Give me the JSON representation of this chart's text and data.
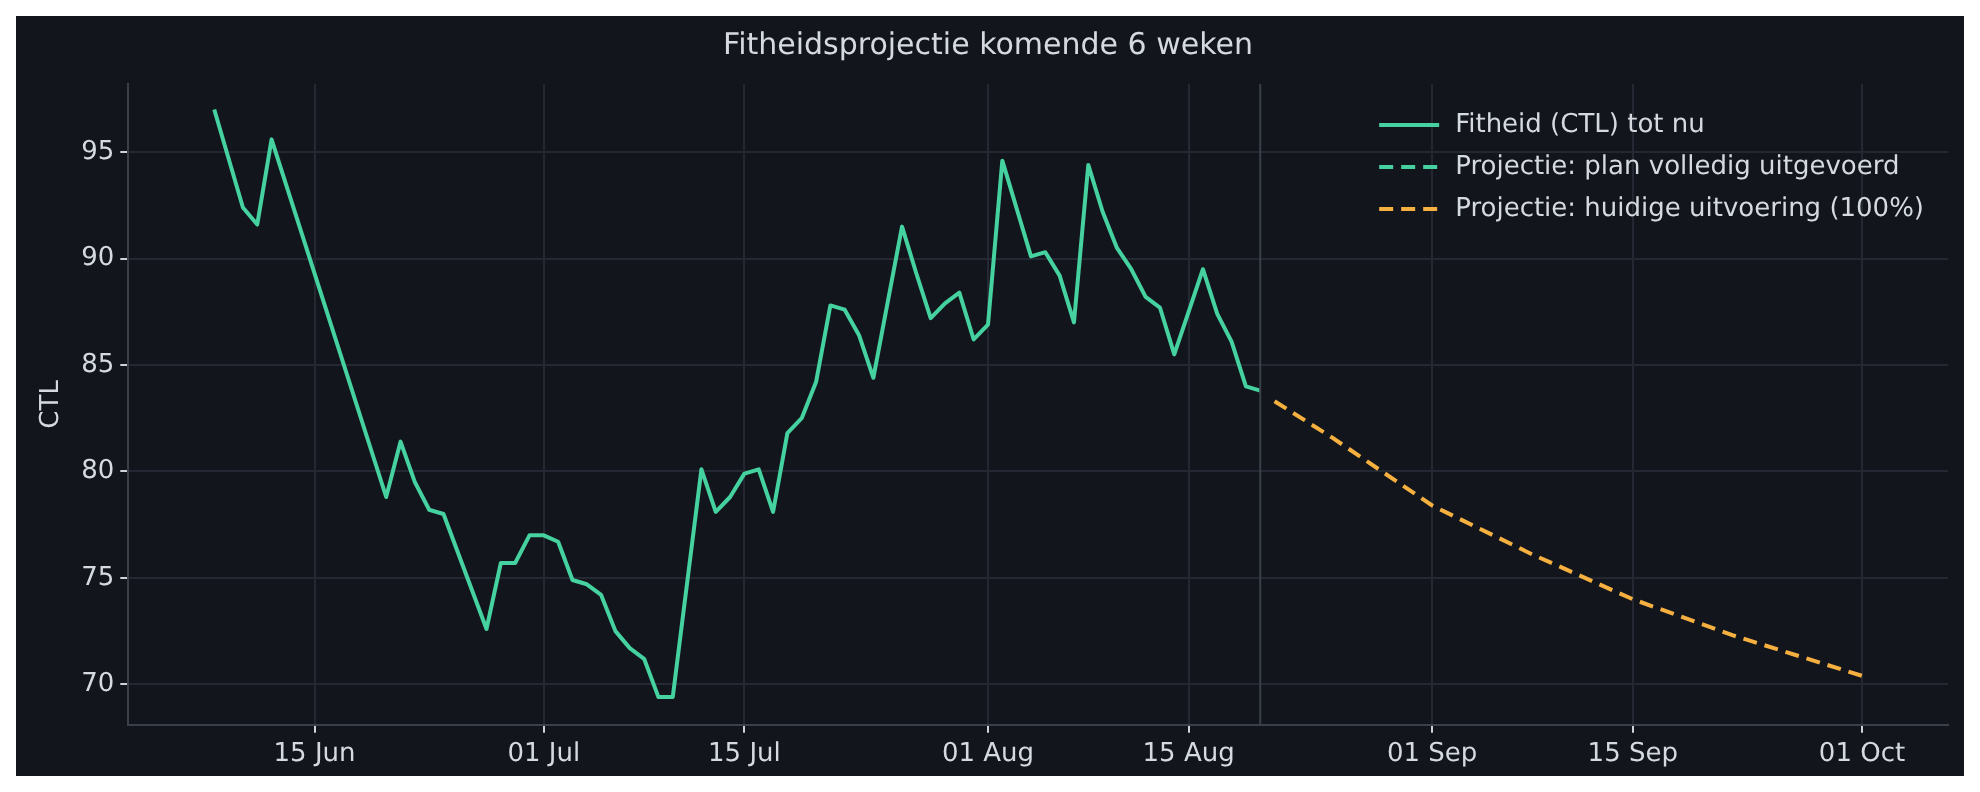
{
  "chart_data": {
    "type": "line",
    "title": "Fitheidsprojectie komende 6 weken",
    "ylabel": "CTL",
    "xlim": [
      "--06-02",
      "--10-07"
    ],
    "ylim": [
      68.1,
      98.2
    ],
    "xticks": [
      {
        "value": "--06-15",
        "label": "15 Jun"
      },
      {
        "value": "--07-01",
        "label": "01 Jul"
      },
      {
        "value": "--07-15",
        "label": "15 Jul"
      },
      {
        "value": "--08-01",
        "label": "01 Aug"
      },
      {
        "value": "--08-15",
        "label": "15 Aug"
      },
      {
        "value": "--09-01",
        "label": "01 Sep"
      },
      {
        "value": "--09-15",
        "label": "15 Sep"
      },
      {
        "value": "--10-01",
        "label": "01 Oct"
      }
    ],
    "yticks": [
      70,
      75,
      80,
      85,
      90,
      95
    ],
    "grid": true,
    "legend": "top right",
    "ref_lines": [
      {
        "axis": "x",
        "value": "--08-20",
        "color": "#3a404a"
      }
    ],
    "series": [
      {
        "name": "Fitheid (CTL) tot nu",
        "color": "#45d1a0",
        "line_style": "solid",
        "x": [
          "--06-08",
          "--06-10",
          "--06-11",
          "--06-12",
          "--06-20",
          "--06-21",
          "--06-22",
          "--06-23",
          "--06-24",
          "--06-27",
          "--06-28",
          "--06-29",
          "--06-30",
          "--07-01",
          "--07-02",
          "--07-03",
          "--07-04",
          "--07-05",
          "--07-06",
          "--07-07",
          "--07-08",
          "--07-09",
          "--07-10",
          "--07-12",
          "--07-13",
          "--07-14",
          "--07-15",
          "--07-16",
          "--07-17",
          "--07-18",
          "--07-19",
          "--07-20",
          "--07-21",
          "--07-22",
          "--07-23",
          "--07-24",
          "--07-26",
          "--07-27",
          "--07-28",
          "--07-29",
          "--07-30",
          "--07-31",
          "--08-01",
          "--08-02",
          "--08-04",
          "--08-05",
          "--08-06",
          "--08-07",
          "--08-08",
          "--08-09",
          "--08-10",
          "--08-11",
          "--08-12",
          "--08-13",
          "--08-14",
          "--08-15",
          "--08-16",
          "--08-17",
          "--08-18",
          "--08-19",
          "--08-20"
        ],
        "values": [
          97.0,
          92.4,
          91.6,
          95.6,
          78.8,
          81.4,
          79.5,
          78.2,
          78.0,
          72.6,
          75.7,
          75.7,
          77.0,
          77.0,
          76.7,
          74.9,
          74.7,
          74.2,
          72.5,
          71.7,
          71.2,
          69.4,
          69.4,
          80.1,
          78.1,
          78.8,
          79.9,
          80.1,
          78.1,
          81.8,
          82.5,
          84.2,
          87.8,
          87.6,
          86.4,
          84.4,
          91.5,
          89.3,
          87.2,
          87.9,
          88.4,
          86.2,
          86.9,
          94.6,
          90.1,
          90.3,
          89.2,
          87.0,
          94.4,
          92.2,
          90.5,
          89.5,
          88.2,
          87.7,
          85.5,
          87.5,
          89.5,
          87.4,
          86.1,
          84.0,
          83.8
        ]
      },
      {
        "name": "Projectie: plan volledig uitgevoerd",
        "color": "#45d1a0",
        "line_style": "dashed"
      },
      {
        "name": "Projectie: huidige uitvoering (100%)",
        "color": "#f6b040",
        "line_style": "dashed",
        "x": [
          "--08-21",
          "--08-25",
          "--09-01",
          "--09-08",
          "--09-15",
          "--09-22",
          "--10-01"
        ],
        "values": [
          83.3,
          81.6,
          78.4,
          76.1,
          74.0,
          72.3,
          70.4
        ]
      }
    ]
  }
}
